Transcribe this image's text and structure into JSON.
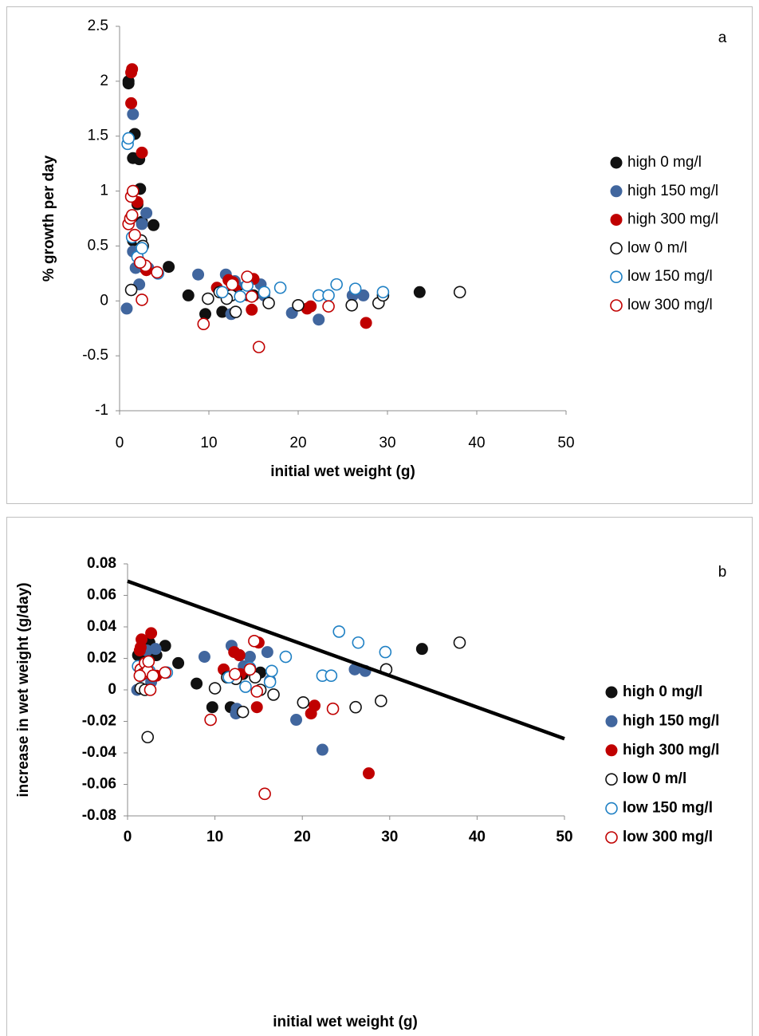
{
  "chart_data": [
    {
      "type": "scatter",
      "annotation": "a",
      "x_label": "initial wet weight (g)",
      "y_label": "% growth per day",
      "xlim": [
        0,
        50
      ],
      "ylim": [
        -1,
        2.5
      ],
      "xticks": [
        0,
        10,
        20,
        30,
        40,
        50
      ],
      "yticks": [
        -1,
        -0.5,
        0,
        0.5,
        1,
        1.5,
        2,
        2.5
      ],
      "legend": "right",
      "series": [
        {
          "name": "high 0 mg/l",
          "color": "#111111",
          "filled": true,
          "x": [
            1.0,
            1.0,
            1.5,
            1.7,
            2.2,
            2.3,
            2.0,
            1.5,
            2.5,
            3.8,
            5.5,
            7.7,
            9.6,
            11.5,
            12.2,
            14.0,
            15.0,
            33.6,
            2.8
          ],
          "y": [
            2.0,
            1.98,
            1.3,
            1.52,
            1.29,
            1.02,
            0.88,
            0.55,
            0.72,
            0.69,
            0.31,
            0.05,
            -0.12,
            -0.1,
            0.05,
            0.12,
            0.05,
            0.08,
            0.3
          ]
        },
        {
          "name": "high 150 mg/l",
          "color": "#41669e",
          "filled": true,
          "x": [
            0.8,
            1.5,
            1.5,
            1.8,
            3.0,
            2.5,
            2.2,
            8.8,
            11.9,
            12.5,
            12.9,
            13.8,
            15.8,
            16.2,
            19.3,
            22.3,
            26.1,
            27.3,
            3.2
          ],
          "y": [
            -0.07,
            1.7,
            0.45,
            0.3,
            0.8,
            0.7,
            0.15,
            0.24,
            0.24,
            -0.12,
            0.18,
            0.12,
            0.15,
            0.05,
            -0.11,
            -0.17,
            0.05,
            0.05,
            0.3
          ]
        },
        {
          "name": "high 300 mg/l",
          "color": "#c00000",
          "filled": true,
          "x": [
            1.3,
            1.4,
            1.3,
            2.5,
            2.0,
            3.0,
            10.9,
            12.2,
            12.7,
            13.0,
            14.4,
            14.8,
            15.0,
            21.0,
            21.4,
            27.6
          ],
          "y": [
            2.08,
            2.11,
            1.8,
            1.35,
            0.9,
            0.28,
            0.12,
            0.19,
            0.17,
            0.1,
            0.05,
            -0.08,
            0.2,
            -0.07,
            -0.05,
            -0.2
          ]
        },
        {
          "name": "low 0 m/l",
          "color": "#111111",
          "filled": false,
          "x": [
            1.3,
            2.4,
            2.6,
            9.9,
            11.2,
            12.5,
            13.0,
            14.0,
            16.7,
            20.0,
            26.0,
            29.0,
            29.5,
            38.1,
            12.0
          ],
          "y": [
            0.1,
            0.55,
            0.5,
            0.02,
            0.08,
            0.05,
            -0.1,
            0.06,
            -0.02,
            -0.04,
            -0.04,
            -0.02,
            0.05,
            0.08,
            0.02
          ]
        },
        {
          "name": "low 150 mg/l",
          "color": "#1f80c4",
          "filled": false,
          "x": [
            0.9,
            1.0,
            1.4,
            2.0,
            2.5,
            4.3,
            11.5,
            13.5,
            14.3,
            16.2,
            18.0,
            22.3,
            23.4,
            24.3,
            26.4,
            29.5
          ],
          "y": [
            1.43,
            1.48,
            0.58,
            0.4,
            0.48,
            0.25,
            0.08,
            0.04,
            0.14,
            0.08,
            0.12,
            0.05,
            0.05,
            0.15,
            0.11,
            0.08
          ]
        },
        {
          "name": "low 300 mg/l",
          "color": "#c00000",
          "filled": false,
          "x": [
            1.0,
            1.2,
            1.3,
            1.5,
            1.4,
            1.7,
            2.5,
            2.9,
            4.2,
            9.4,
            12.6,
            14.3,
            15.6,
            23.4,
            14.8,
            2.3
          ],
          "y": [
            0.7,
            0.75,
            0.95,
            1.0,
            0.78,
            0.6,
            0.01,
            0.32,
            0.26,
            -0.21,
            0.15,
            0.22,
            -0.42,
            -0.05,
            0.04,
            0.35
          ]
        }
      ]
    },
    {
      "type": "scatter",
      "annotation": "b",
      "x_label": "initial wet weight (g)",
      "y_label": "increase in wet weight (g/day)",
      "xlim": [
        0,
        50
      ],
      "ylim": [
        -0.08,
        0.08
      ],
      "xticks": [
        0,
        10,
        20,
        30,
        40,
        50
      ],
      "yticks": [
        -0.08,
        -0.06,
        -0.04,
        -0.02,
        0,
        0.02,
        0.04,
        0.06,
        0.08
      ],
      "legend": "right",
      "trendline": {
        "x": [
          0,
          50
        ],
        "y": [
          0.069,
          -0.031
        ],
        "color": "#000000"
      },
      "series": [
        {
          "name": "high 0 mg/l",
          "color": "#111111",
          "filled": true,
          "x": [
            1.2,
            1.4,
            2.5,
            2.0,
            3.3,
            4.3,
            5.8,
            7.9,
            9.7,
            11.8,
            12.8,
            13.2,
            15.2,
            33.7,
            2.2
          ],
          "y": [
            0.022,
            0.024,
            0.03,
            0.024,
            0.022,
            0.028,
            0.017,
            0.004,
            -0.011,
            -0.011,
            0.022,
            0.01,
            0.011,
            0.026,
            0.021
          ]
        },
        {
          "name": "high 150 mg/l",
          "color": "#41669e",
          "filled": true,
          "x": [
            1.1,
            2.2,
            3.2,
            2.0,
            2.7,
            8.8,
            11.9,
            12.5,
            12.4,
            13.3,
            14.0,
            16.0,
            16.3,
            19.3,
            22.3,
            26.0,
            27.2
          ],
          "y": [
            0,
            0.025,
            0.026,
            0.017,
            0.005,
            0.021,
            0.028,
            -0.012,
            -0.015,
            0.015,
            0.021,
            0.024,
            0.006,
            -0.019,
            -0.038,
            0.013,
            0.012
          ]
        },
        {
          "name": "high 300 mg/l",
          "color": "#c00000",
          "filled": true,
          "x": [
            1.6,
            1.5,
            1.4,
            2.7,
            2.2,
            3.3,
            11.0,
            12.2,
            12.8,
            12.9,
            14.8,
            15.0,
            21.0,
            21.4,
            27.6
          ],
          "y": [
            0.032,
            0.027,
            0.025,
            0.036,
            0.016,
            0.009,
            0.013,
            0.024,
            0.022,
            0.01,
            -0.011,
            0.03,
            -0.015,
            -0.01,
            -0.053
          ]
        },
        {
          "name": "low 0 m/l",
          "color": "#111111",
          "filled": false,
          "x": [
            1.5,
            2.0,
            2.3,
            10.0,
            11.4,
            12.4,
            13.2,
            14.6,
            15.2,
            16.7,
            20.1,
            26.1,
            29.0,
            29.6,
            38.0
          ],
          "y": [
            0.001,
            0.0,
            -0.03,
            0.001,
            0.008,
            0.007,
            -0.014,
            0.008,
            0.0,
            -0.003,
            -0.008,
            -0.011,
            -0.007,
            0.013,
            0.03
          ]
        },
        {
          "name": "low 150 mg/l",
          "color": "#1f80c4",
          "filled": false,
          "x": [
            1.2,
            1.5,
            2.5,
            4.5,
            13.5,
            14.0,
            16.3,
            16.5,
            18.1,
            22.3,
            23.3,
            24.2,
            26.4,
            29.5,
            11.6
          ],
          "y": [
            0.015,
            0.009,
            0.012,
            0.011,
            0.002,
            0.014,
            0.005,
            0.012,
            0.021,
            0.009,
            0.009,
            0.037,
            0.03,
            0.024,
            0.008
          ]
        },
        {
          "name": "low 300 mg/l",
          "color": "#c00000",
          "filled": false,
          "x": [
            1.5,
            1.7,
            2.0,
            2.3,
            2.6,
            1.4,
            2.9,
            4.3,
            9.5,
            12.3,
            14.0,
            14.5,
            14.8,
            15.7,
            23.5,
            2.4
          ],
          "y": [
            0.013,
            0.01,
            0.017,
            0.012,
            0.0,
            0.009,
            0.009,
            0.011,
            -0.019,
            0.01,
            0.013,
            0.031,
            -0.001,
            -0.066,
            -0.012,
            0.018
          ]
        }
      ]
    }
  ]
}
